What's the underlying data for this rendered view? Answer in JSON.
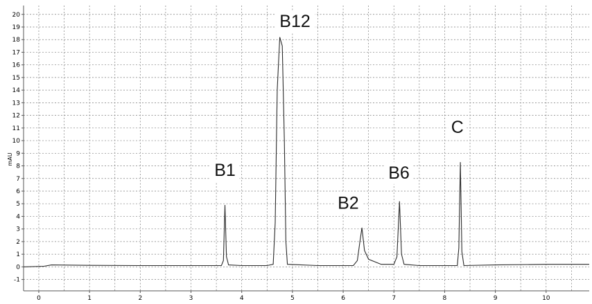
{
  "chart_data": {
    "type": "line",
    "title": "",
    "xlabel": "",
    "ylabel": "mAU",
    "xlim": [
      -0.3,
      10.85
    ],
    "ylim": [
      -1.9,
      20.7
    ],
    "x_ticks": [
      0,
      1,
      2,
      3,
      4,
      5,
      6,
      7,
      8,
      9,
      10
    ],
    "y_ticks": [
      -1,
      0,
      1,
      2,
      3,
      4,
      5,
      6,
      7,
      8,
      9,
      10,
      11,
      12,
      13,
      14,
      15,
      16,
      17,
      18,
      19,
      20
    ],
    "grid": true,
    "series": [
      {
        "points": [
          [
            -0.3,
            0.0
          ],
          [
            0.1,
            0.05
          ],
          [
            0.25,
            0.15
          ],
          [
            1.0,
            0.12
          ],
          [
            2.0,
            0.1
          ],
          [
            3.0,
            0.1
          ],
          [
            3.6,
            0.1
          ],
          [
            3.64,
            0.5
          ],
          [
            3.67,
            4.9
          ],
          [
            3.7,
            0.8
          ],
          [
            3.74,
            0.15
          ],
          [
            4.0,
            0.1
          ],
          [
            4.5,
            0.1
          ],
          [
            4.62,
            0.2
          ],
          [
            4.66,
            3.5
          ],
          [
            4.7,
            14.0
          ],
          [
            4.75,
            18.2
          ],
          [
            4.8,
            17.5
          ],
          [
            4.84,
            10.0
          ],
          [
            4.87,
            2.0
          ],
          [
            4.9,
            0.2
          ],
          [
            5.5,
            0.1
          ],
          [
            6.2,
            0.1
          ],
          [
            6.28,
            0.5
          ],
          [
            6.33,
            2.0
          ],
          [
            6.37,
            3.1
          ],
          [
            6.42,
            1.3
          ],
          [
            6.5,
            0.6
          ],
          [
            6.75,
            0.2
          ],
          [
            7.0,
            0.2
          ],
          [
            7.06,
            0.8
          ],
          [
            7.11,
            5.2
          ],
          [
            7.15,
            1.0
          ],
          [
            7.2,
            0.2
          ],
          [
            7.5,
            0.1
          ],
          [
            8.25,
            0.1
          ],
          [
            8.28,
            1.5
          ],
          [
            8.31,
            8.3
          ],
          [
            8.34,
            1.2
          ],
          [
            8.38,
            0.1
          ],
          [
            9.0,
            0.15
          ],
          [
            10.0,
            0.2
          ],
          [
            10.85,
            0.2
          ]
        ]
      }
    ],
    "annotations": [
      {
        "text": "B1",
        "x": 3.67,
        "y": 7.2
      },
      {
        "text": "B12",
        "x": 5.05,
        "y": 19.0
      },
      {
        "text": "B2",
        "x": 6.1,
        "y": 4.6
      },
      {
        "text": "B6",
        "x": 7.1,
        "y": 7.0
      },
      {
        "text": "C",
        "x": 8.25,
        "y": 10.6
      }
    ]
  }
}
